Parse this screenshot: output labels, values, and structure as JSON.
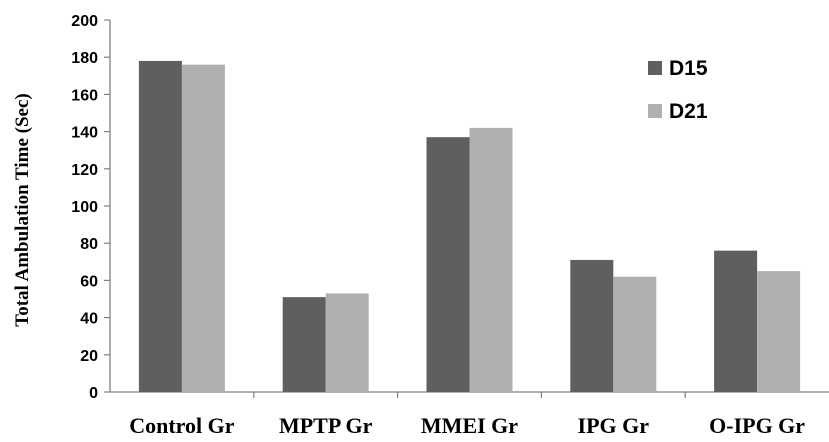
{
  "chart_data": {
    "type": "bar",
    "categories": [
      "Control Gr",
      "MPTP Gr",
      "MMEI Gr",
      "IPG Gr",
      "O-IPG Gr"
    ],
    "series": [
      {
        "name": "D15",
        "values": [
          178,
          51,
          137,
          71,
          76
        ],
        "color": "#5f5f5f"
      },
      {
        "name": "D21",
        "values": [
          176,
          53,
          142,
          62,
          65
        ],
        "color": "#b0b0b0"
      }
    ],
    "title": "",
    "xlabel": "",
    "ylabel": "Total Ambulation Time (Sec)",
    "ylim": [
      0,
      200
    ],
    "yticks": [
      0,
      20,
      40,
      60,
      80,
      100,
      120,
      140,
      160,
      180,
      200
    ],
    "legend_position": "top-right",
    "grid": false
  }
}
